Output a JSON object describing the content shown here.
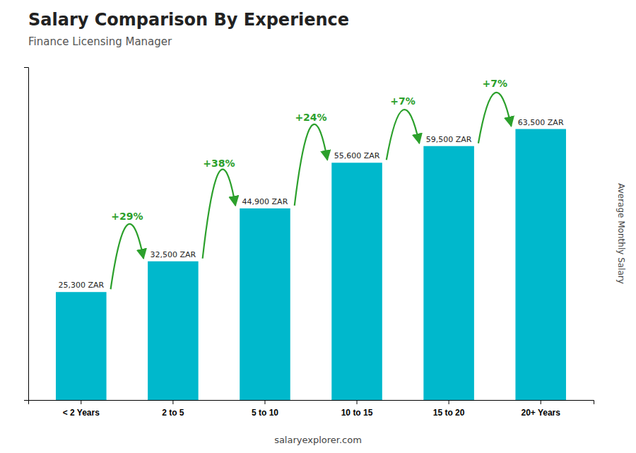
{
  "chart_data": {
    "type": "bar",
    "title": "Salary Comparison By Experience",
    "subtitle": "Finance Licensing Manager",
    "ylabel": "Average Monthly Salary",
    "categories": [
      "< 2 Years",
      "2 to 5",
      "5 to 10",
      "10 to 15",
      "15 to 20",
      "20+ Years"
    ],
    "values": [
      25300,
      32500,
      44900,
      55600,
      59500,
      63500
    ],
    "value_labels": [
      "25,300 ZAR",
      "32,500 ZAR",
      "44,900 ZAR",
      "55,600 ZAR",
      "59,500 ZAR",
      "63,500 ZAR"
    ],
    "data_labels": true,
    "annotations": [
      "+29%",
      "+38%",
      "+24%",
      "+7%",
      "+7%"
    ],
    "footer": "salaryexplorer.com",
    "color": "#00b8cc",
    "ylim": [
      0,
      78000
    ],
    "tick_labels": "x",
    "grid": false
  }
}
